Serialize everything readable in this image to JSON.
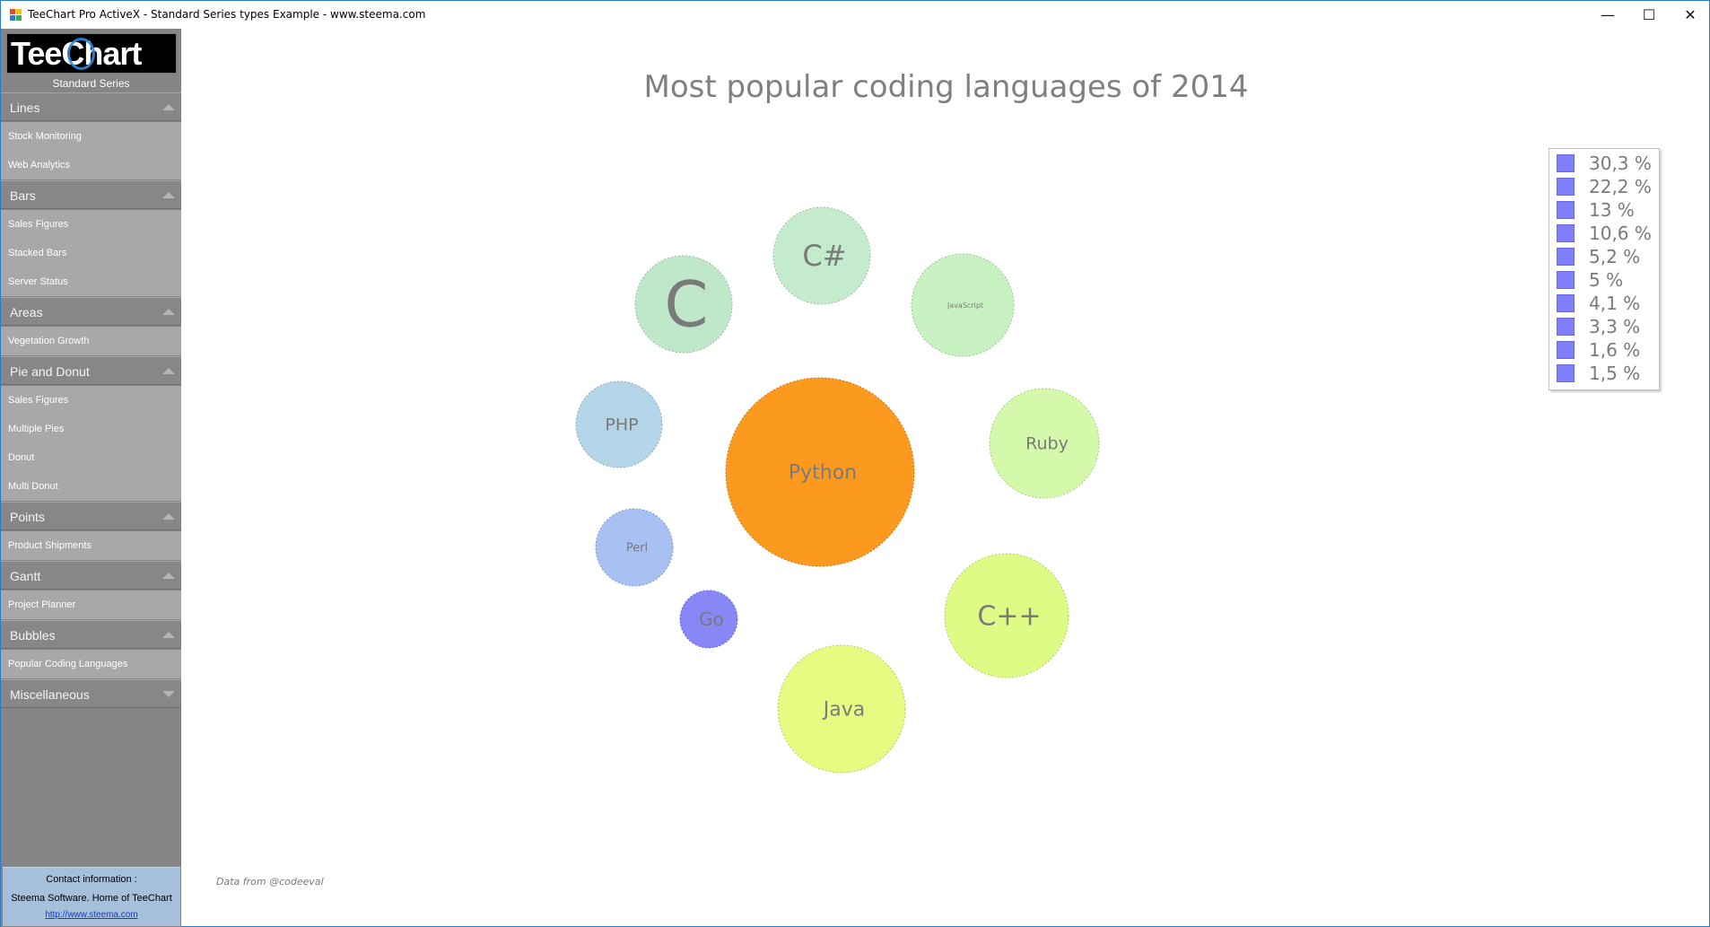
{
  "window": {
    "title": "TeeChart Pro ActiveX - Standard Series types Example - www.steema.com",
    "minimize_glyph": "—",
    "maximize_glyph": "☐",
    "close_glyph": "✕"
  },
  "sidebar": {
    "logo_text": "TeeChart",
    "subtitle": "Standard Series",
    "sections": [
      {
        "label": "Lines",
        "expanded": true,
        "items": [
          "Stock Monitoring",
          "Web Analytics"
        ]
      },
      {
        "label": "Bars",
        "expanded": true,
        "items": [
          "Sales Figures",
          "Stacked Bars",
          "Server Status"
        ]
      },
      {
        "label": "Areas",
        "expanded": true,
        "items": [
          "Vegetation Growth"
        ]
      },
      {
        "label": "Pie and Donut",
        "expanded": true,
        "items": [
          "Sales Figures",
          "Multiple Pies",
          "Donut",
          "Multi Donut"
        ]
      },
      {
        "label": "Points",
        "expanded": true,
        "items": [
          "Product Shipments"
        ]
      },
      {
        "label": "Gantt",
        "expanded": true,
        "items": [
          "Project Planner"
        ]
      },
      {
        "label": "Bubbles",
        "expanded": true,
        "items": [
          "Popular Coding Languages"
        ]
      },
      {
        "label": "Miscellaneous",
        "expanded": false,
        "items": []
      }
    ],
    "contact": {
      "line1": "Contact information :",
      "line2": "Steema Software. Home of TeeChart",
      "link": "http://www.steema.com"
    }
  },
  "chart_data": {
    "type": "bubble",
    "title": "Most popular coding languages of 2014",
    "footer": "Data from @codeeval",
    "legend_position": "top-right",
    "bubbles": [
      {
        "label": "Python",
        "percent": 30.3,
        "color": "#fb9a1f"
      },
      {
        "label": "Java",
        "percent": 22.2,
        "color": "#e6fb82"
      },
      {
        "label": "C++",
        "percent": 13,
        "color": "#defb86"
      },
      {
        "label": "Ruby",
        "percent": 10.6,
        "color": "#d4f9ab"
      },
      {
        "label": "JavaScript",
        "percent": 5.2,
        "color": "#c8f1c1"
      },
      {
        "label": "C#",
        "percent": 5,
        "color": "#c5ebcd"
      },
      {
        "label": "C",
        "percent": 4.1,
        "color": "#bfe8cb"
      },
      {
        "label": "PHP",
        "percent": 3.3,
        "color": "#b4d4e8"
      },
      {
        "label": "Perl",
        "percent": 1.6,
        "color": "#a8c0f2"
      },
      {
        "label": "Go",
        "percent": 1.5,
        "color": "#8787f7"
      }
    ],
    "legend_entries": [
      "30,3 %",
      "22,2 %",
      "13 %",
      "10,6 %",
      "5,2 %",
      "5 %",
      "4,1 %",
      "3,3 %",
      "1,6 %",
      "1,5 %"
    ],
    "legend_swatch_color": "#7f7ffa"
  }
}
